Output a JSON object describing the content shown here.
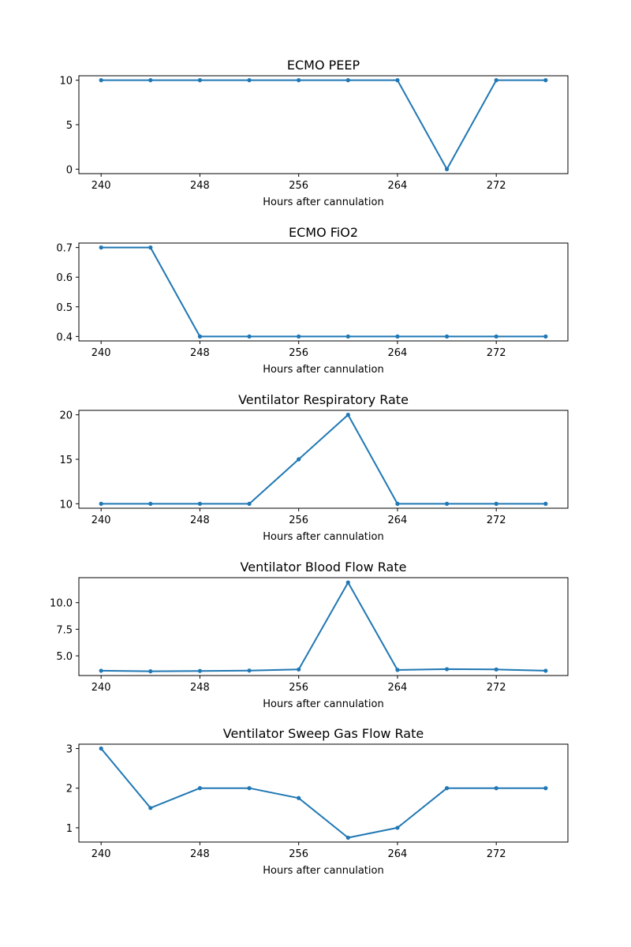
{
  "chart_data": [
    {
      "type": "line",
      "title": "ECMO PEEP",
      "xlabel": "Hours after cannulation",
      "x": [
        240,
        244,
        248,
        252,
        256,
        260,
        264,
        268,
        272,
        276
      ],
      "values": [
        10,
        10,
        10,
        10,
        10,
        10,
        10,
        0,
        10,
        10
      ],
      "xlim": [
        238.2,
        277.8
      ],
      "ylim": [
        -0.5,
        10.5
      ],
      "xticks": [
        240,
        248,
        256,
        264,
        272
      ],
      "yticks": [
        0,
        5,
        10
      ],
      "ytick_labels": [
        "0",
        "5",
        "10"
      ],
      "grid": false,
      "color": "#1f77b4"
    },
    {
      "type": "line",
      "title": "ECMO FiO2",
      "xlabel": "Hours after cannulation",
      "x": [
        240,
        244,
        248,
        252,
        256,
        260,
        264,
        268,
        272,
        276
      ],
      "values": [
        0.7,
        0.7,
        0.4,
        0.4,
        0.4,
        0.4,
        0.4,
        0.4,
        0.4,
        0.4
      ],
      "xlim": [
        238.2,
        277.8
      ],
      "ylim": [
        0.385,
        0.715
      ],
      "xticks": [
        240,
        248,
        256,
        264,
        272
      ],
      "yticks": [
        0.4,
        0.5,
        0.6,
        0.7
      ],
      "ytick_labels": [
        "0.4",
        "0.5",
        "0.6",
        "0.7"
      ],
      "grid": false,
      "color": "#1f77b4"
    },
    {
      "type": "line",
      "title": "Ventilator Respiratory Rate",
      "xlabel": "Hours after cannulation",
      "x": [
        240,
        244,
        248,
        252,
        256,
        260,
        264,
        268,
        272,
        276
      ],
      "values": [
        10,
        10,
        10,
        10,
        15,
        20,
        10,
        10,
        10,
        10
      ],
      "xlim": [
        238.2,
        277.8
      ],
      "ylim": [
        9.5,
        20.5
      ],
      "xticks": [
        240,
        248,
        256,
        264,
        272
      ],
      "yticks": [
        10,
        15,
        20
      ],
      "ytick_labels": [
        "10",
        "15",
        "20"
      ],
      "grid": false,
      "color": "#1f77b4"
    },
    {
      "type": "line",
      "title": "Ventilator Blood Flow Rate",
      "xlabel": "Hours after cannulation",
      "x": [
        240,
        244,
        248,
        252,
        256,
        260,
        264,
        268,
        272,
        276
      ],
      "values": [
        3.6,
        3.55,
        3.58,
        3.62,
        3.72,
        11.9,
        3.68,
        3.75,
        3.72,
        3.6
      ],
      "xlim": [
        238.2,
        277.8
      ],
      "ylim": [
        3.15,
        12.35
      ],
      "xticks": [
        240,
        248,
        256,
        264,
        272
      ],
      "yticks": [
        5.0,
        7.5,
        10.0
      ],
      "ytick_labels": [
        "5.0",
        "7.5",
        "10.0"
      ],
      "grid": false,
      "color": "#1f77b4"
    },
    {
      "type": "line",
      "title": "Ventilator Sweep Gas Flow Rate",
      "xlabel": "Hours after cannulation",
      "x": [
        240,
        244,
        248,
        252,
        256,
        260,
        264,
        268,
        272,
        276
      ],
      "values": [
        3,
        1.5,
        2,
        2,
        1.75,
        0.75,
        1,
        2,
        2,
        2
      ],
      "xlim": [
        238.2,
        277.8
      ],
      "ylim": [
        0.64,
        3.11
      ],
      "xticks": [
        240,
        248,
        256,
        264,
        272
      ],
      "yticks": [
        1,
        2,
        3
      ],
      "ytick_labels": [
        "1",
        "2",
        "3"
      ],
      "grid": false,
      "color": "#1f77b4"
    }
  ]
}
